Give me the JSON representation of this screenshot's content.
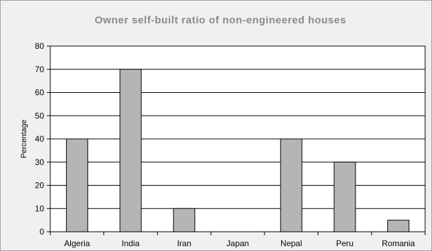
{
  "chart_data": {
    "type": "bar",
    "title": "Owner self-built ratio of non-engineered houses",
    "xlabel": "",
    "ylabel": "Percentage",
    "categories": [
      "Algeria",
      "India",
      "Iran",
      "Japan",
      "Nepal",
      "Peru",
      "Romania"
    ],
    "values": [
      40,
      70,
      10,
      0,
      40,
      30,
      5
    ],
    "ylim": [
      0,
      80
    ],
    "yticks": [
      0,
      10,
      20,
      30,
      40,
      50,
      60,
      70,
      80
    ],
    "grid": true,
    "legend": "none",
    "colors": {
      "bar_fill": "#b5b5b5",
      "bar_stroke": "#000000",
      "plot_background": "#ffffff",
      "chart_background": "#f0f0f0",
      "title": "#8a8a8a"
    }
  }
}
